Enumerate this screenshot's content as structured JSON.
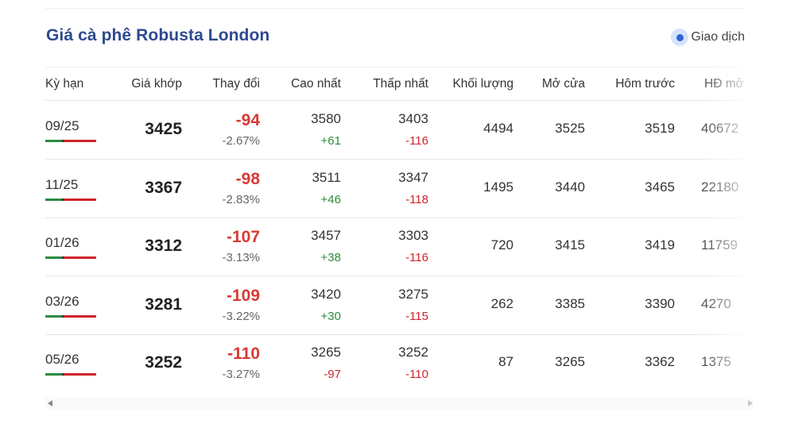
{
  "title": "Giá cà phê Robusta London",
  "status": {
    "label": "Giao dịch",
    "icon": "live-dot-icon",
    "color": "#2f63d6"
  },
  "columns": [
    "Kỳ hạn",
    "Giá khớp",
    "Thay đổi",
    "Cao nhất",
    "Thấp nhất",
    "Khối lượng",
    "Mở cửa",
    "Hôm trước",
    "HĐ mở"
  ],
  "rows": [
    {
      "term": "09/25",
      "price": "3425",
      "change": "-94",
      "change_pct": "-2.67%",
      "high": "3580",
      "high_delta": "+61",
      "low": "3403",
      "low_delta": "-116",
      "volume": "4494",
      "open": "3525",
      "prev": "3519",
      "oi": "40672"
    },
    {
      "term": "11/25",
      "price": "3367",
      "change": "-98",
      "change_pct": "-2.83%",
      "high": "3511",
      "high_delta": "+46",
      "low": "3347",
      "low_delta": "-118",
      "volume": "1495",
      "open": "3440",
      "prev": "3465",
      "oi": "22180"
    },
    {
      "term": "01/26",
      "price": "3312",
      "change": "-107",
      "change_pct": "-3.13%",
      "high": "3457",
      "high_delta": "+38",
      "low": "3303",
      "low_delta": "-116",
      "volume": "720",
      "open": "3415",
      "prev": "3419",
      "oi": "11759"
    },
    {
      "term": "03/26",
      "price": "3281",
      "change": "-109",
      "change_pct": "-3.22%",
      "high": "3420",
      "high_delta": "+30",
      "low": "3275",
      "low_delta": "-115",
      "volume": "262",
      "open": "3385",
      "prev": "3390",
      "oi": "4270"
    },
    {
      "term": "05/26",
      "price": "3252",
      "change": "-110",
      "change_pct": "-3.27%",
      "high": "3265",
      "high_delta": "-97",
      "low": "3252",
      "low_delta": "-110",
      "volume": "87",
      "open": "3265",
      "prev": "3362",
      "oi": "1375"
    }
  ],
  "colors": {
    "title": "#2e4a8f",
    "negative": "#d83a34",
    "positive": "#2e8b3d"
  }
}
